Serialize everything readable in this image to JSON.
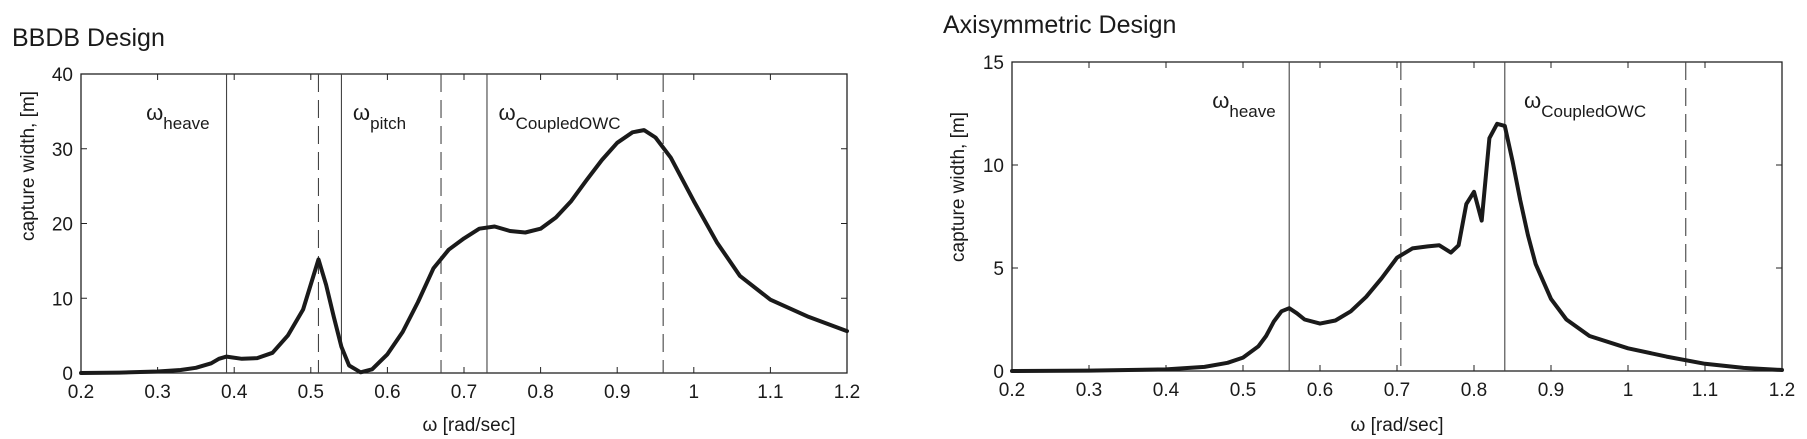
{
  "chart_data": [
    {
      "type": "line",
      "title": "BBDB Design",
      "xlabel": "ω [rad/sec]",
      "ylabel": "capture width, [m]",
      "xlim": [
        0.2,
        1.2
      ],
      "ylim": [
        0,
        40
      ],
      "xticks": [
        0.2,
        0.3,
        0.4,
        0.5,
        0.6,
        0.7,
        0.8,
        0.9,
        1,
        1.1,
        1.2
      ],
      "xtick_labels": [
        "0.2",
        "0.3",
        "0.4",
        "0.5",
        "0.6",
        "0.7",
        "0.8",
        "0.9",
        "1",
        "1.1",
        "1.2"
      ],
      "yticks": [
        0,
        10,
        20,
        30,
        40
      ],
      "ytick_labels": [
        "0",
        "10",
        "20",
        "30",
        "40"
      ],
      "grid": false,
      "series": [
        {
          "x": [
            0.2,
            0.25,
            0.3,
            0.33,
            0.35,
            0.37,
            0.38,
            0.39,
            0.41,
            0.43,
            0.45,
            0.47,
            0.49,
            0.51,
            0.52,
            0.53,
            0.54,
            0.55,
            0.565,
            0.58,
            0.6,
            0.62,
            0.64,
            0.66,
            0.68,
            0.7,
            0.72,
            0.74,
            0.76,
            0.78,
            0.8,
            0.82,
            0.84,
            0.86,
            0.88,
            0.9,
            0.92,
            0.935,
            0.95,
            0.97,
            1.0,
            1.03,
            1.06,
            1.1,
            1.15,
            1.2
          ],
          "values": [
            0,
            0.05,
            0.2,
            0.4,
            0.7,
            1.3,
            1.9,
            2.2,
            1.9,
            2.0,
            2.7,
            5.0,
            8.5,
            15.2,
            11.8,
            7.5,
            3.5,
            1.0,
            0.1,
            0.5,
            2.5,
            5.5,
            9.5,
            14.0,
            16.5,
            18.0,
            19.3,
            19.6,
            19.0,
            18.8,
            19.3,
            20.8,
            23.0,
            25.8,
            28.5,
            30.8,
            32.2,
            32.5,
            31.5,
            28.8,
            23.0,
            17.5,
            13.0,
            9.8,
            7.5,
            5.6
          ]
        }
      ],
      "vlines_solid": [
        0.39,
        0.54,
        0.73
      ],
      "vlines_dashed": [
        0.51,
        0.67,
        0.96
      ],
      "annotations": [
        {
          "base": "ω",
          "sub": "heave",
          "x": 0.285
        },
        {
          "base": "ω",
          "sub": "pitch",
          "x": 0.555
        },
        {
          "base": "ω",
          "sub": "CoupledOWC",
          "x": 0.745
        }
      ]
    },
    {
      "type": "line",
      "title": "Axisymmetric Design",
      "xlabel": "ω [rad/sec]",
      "ylabel": "capture width, [m]",
      "xlim": [
        0.2,
        1.2
      ],
      "ylim": [
        0,
        15
      ],
      "xticks": [
        0.2,
        0.3,
        0.4,
        0.5,
        0.6,
        0.7,
        0.8,
        0.9,
        1,
        1.1,
        1.2
      ],
      "xtick_labels": [
        "0.2",
        "0.3",
        "0.4",
        "0.5",
        "0.6",
        "0.7",
        "0.8",
        "0.9",
        "1",
        "1.1",
        "1.2"
      ],
      "yticks": [
        0,
        5,
        10,
        15
      ],
      "ytick_labels": [
        "0",
        "5",
        "10",
        "15"
      ],
      "grid": false,
      "series": [
        {
          "x": [
            0.2,
            0.3,
            0.4,
            0.45,
            0.48,
            0.5,
            0.52,
            0.53,
            0.54,
            0.55,
            0.56,
            0.57,
            0.58,
            0.6,
            0.62,
            0.64,
            0.66,
            0.68,
            0.7,
            0.72,
            0.74,
            0.755,
            0.77,
            0.78,
            0.79,
            0.8,
            0.81,
            0.82,
            0.83,
            0.84,
            0.85,
            0.86,
            0.87,
            0.88,
            0.9,
            0.92,
            0.95,
            1.0,
            1.05,
            1.1,
            1.15,
            1.2
          ],
          "values": [
            0,
            0.02,
            0.08,
            0.2,
            0.4,
            0.65,
            1.2,
            1.7,
            2.4,
            2.9,
            3.05,
            2.8,
            2.5,
            2.3,
            2.45,
            2.9,
            3.6,
            4.5,
            5.5,
            5.95,
            6.05,
            6.1,
            5.75,
            6.1,
            8.1,
            8.7,
            7.3,
            11.3,
            12.0,
            11.9,
            10.2,
            8.3,
            6.6,
            5.2,
            3.5,
            2.5,
            1.7,
            1.1,
            0.7,
            0.35,
            0.15,
            0.05
          ]
        }
      ],
      "vlines_solid": [
        0.56,
        0.84
      ],
      "vlines_dashed": [
        0.705,
        1.075
      ],
      "annotations": [
        {
          "base": "ω",
          "sub": "heave",
          "x": 0.46
        },
        {
          "base": "ω",
          "sub": "CoupledOWC",
          "x": 0.865
        }
      ]
    }
  ]
}
